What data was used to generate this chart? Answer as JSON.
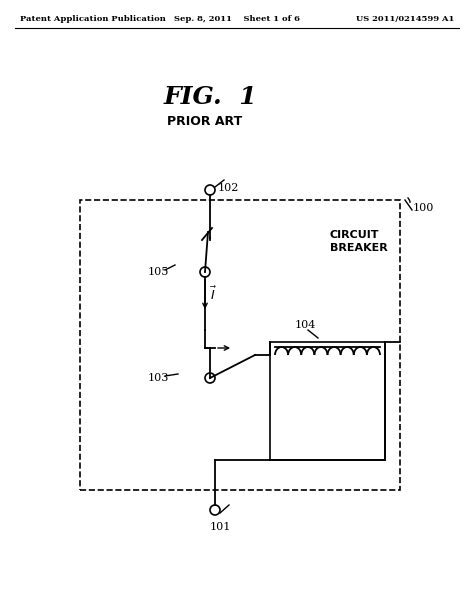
{
  "bg_color": "#ffffff",
  "line_color": "#000000",
  "header_left": "Patent Application Publication",
  "header_mid": "Sep. 8, 2011    Sheet 1 of 6",
  "header_right": "US 2011/0214599 A1",
  "title": "FIG.  1",
  "subtitle": "PRIOR ART",
  "label_100": "100",
  "label_101": "101",
  "label_102": "102",
  "label_103": "103",
  "label_104": "104",
  "label_105": "105",
  "label_circuit_breaker": "CIRCUIT\nBREAKER"
}
